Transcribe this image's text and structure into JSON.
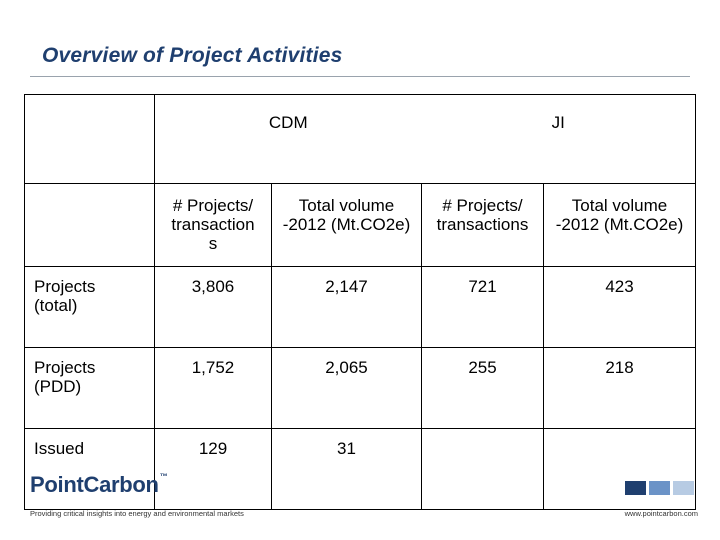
{
  "slide": {
    "title": "Overview of Project Activities"
  },
  "table": {
    "groups": {
      "cdm": "CDM",
      "ji": "JI"
    },
    "subheaders": {
      "cdm_projects_line1": "# Projects/",
      "cdm_projects_line2": "transaction",
      "cdm_projects_line3": "s",
      "cdm_volume_line1": "Total volume",
      "cdm_volume_line2": "-2012 (Mt.CO2e)",
      "ji_projects_line1": "# Projects/",
      "ji_projects_line2": "transactions",
      "ji_volume_line1": "Total volume",
      "ji_volume_line2": "-2012 (Mt.CO2e)"
    },
    "rows": [
      {
        "label_line1": "Projects",
        "label_line2": "(total)",
        "cdm_projects": "3,806",
        "cdm_volume": "2,147",
        "ji_projects": "721",
        "ji_volume": "423"
      },
      {
        "label_line1": "Projects",
        "label_line2": "(PDD)",
        "cdm_projects": "1,752",
        "cdm_volume": "2,065",
        "ji_projects": "255",
        "ji_volume": "218"
      },
      {
        "label_line1": "Issued",
        "label_line2": "",
        "cdm_projects": "129",
        "cdm_volume": "31",
        "ji_projects": "",
        "ji_volume": ""
      }
    ]
  },
  "footer": {
    "logo_text": "PointCarbon",
    "logo_tm": "™",
    "tagline": "Providing critical insights into energy and environmental markets",
    "url": "www.pointcarbon.com",
    "square_colors": [
      "#1f3f6f",
      "#6b93c7",
      "#b7cbe3"
    ]
  }
}
